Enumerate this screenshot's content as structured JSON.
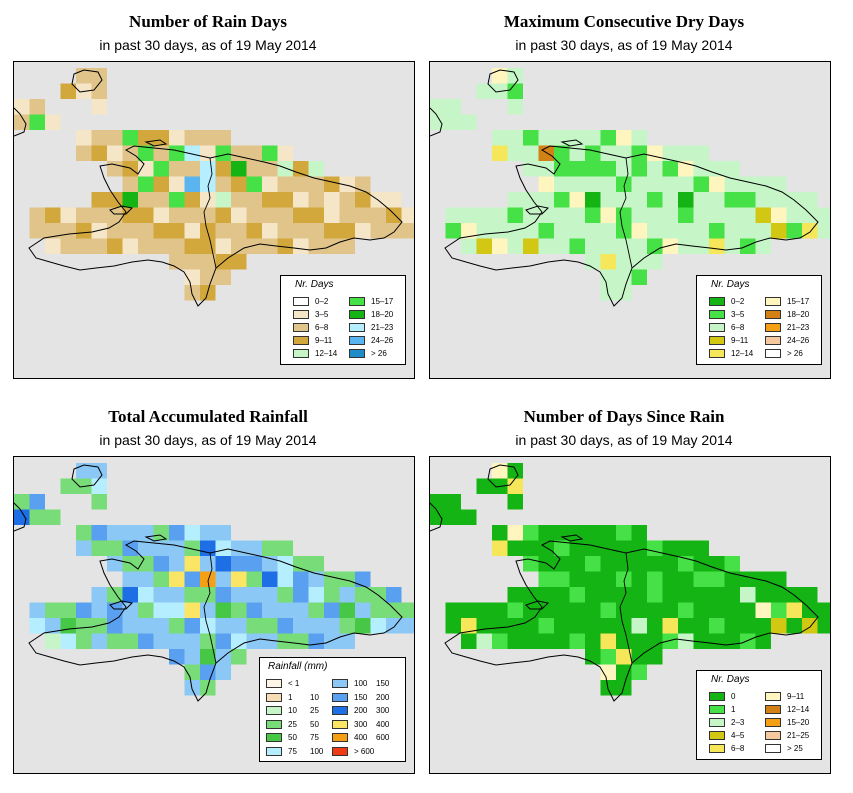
{
  "colors": {
    "background": "#e4e4e4",
    "border": "#000000"
  },
  "panels": [
    {
      "id": "rain-days",
      "title": "Number of Rain Days",
      "subtitle": "in past 30 days, as of  19 May 2014",
      "legend": {
        "title": "Nr. Days",
        "items": [
          {
            "label": "0–2",
            "color": "#ffffff"
          },
          {
            "label": "3–5",
            "color": "#f5e6c8"
          },
          {
            "label": "6–8",
            "color": "#e1c48a"
          },
          {
            "label": "9–11",
            "color": "#d2a73c"
          },
          {
            "label": "12–14",
            "color": "#c6f5c8"
          },
          {
            "label": "15–17",
            "color": "#46e146"
          },
          {
            "label": "18–20",
            "color": "#14b414"
          },
          {
            "label": "21–23",
            "color": "#b4eeff"
          },
          {
            "label": "24–26",
            "color": "#5ab4f0"
          },
          {
            "label": "> 26",
            "color": "#1e8cc8"
          }
        ]
      },
      "map": {
        "base_color": "#e1c48a",
        "cells": [
          {
            "col": 7,
            "row": 4,
            "color": "#46e146"
          },
          {
            "col": 8,
            "row": 5,
            "color": "#46e146"
          },
          {
            "col": 10,
            "row": 5,
            "color": "#46e146"
          },
          {
            "col": 9,
            "row": 6,
            "color": "#46e146"
          },
          {
            "col": 11,
            "row": 5,
            "color": "#b4eeff"
          },
          {
            "col": 12,
            "row": 6,
            "color": "#b4eeff"
          },
          {
            "col": 11,
            "row": 7,
            "color": "#5ab4f0"
          },
          {
            "col": 12,
            "row": 7,
            "color": "#b4eeff"
          },
          {
            "col": 13,
            "row": 5,
            "color": "#46e146"
          },
          {
            "col": 14,
            "row": 6,
            "color": "#14b414"
          },
          {
            "col": 16,
            "row": 5,
            "color": "#46e146"
          },
          {
            "col": 17,
            "row": 6,
            "color": "#c6f5c8"
          },
          {
            "col": 13,
            "row": 8,
            "color": "#c6f5c8"
          },
          {
            "col": 15,
            "row": 7,
            "color": "#46e146"
          },
          {
            "col": 19,
            "row": 6,
            "color": "#c6f5c8"
          },
          {
            "col": 8,
            "row": 7,
            "color": "#46e146"
          },
          {
            "col": 7,
            "row": 8,
            "color": "#14b414"
          },
          {
            "col": 10,
            "row": 8,
            "color": "#46e146"
          },
          {
            "col": 5,
            "row": 2,
            "color": "#f5e6c8"
          },
          {
            "col": 4,
            "row": 1,
            "color": "#f5e6c8"
          },
          {
            "col": 1,
            "row": 3,
            "color": "#46e146"
          },
          {
            "col": 20,
            "row": 8,
            "color": "#f5e6c8"
          },
          {
            "col": 24,
            "row": 8,
            "color": "#f5e6c8"
          },
          {
            "col": 12,
            "row": 10,
            "color": "#d2a73c"
          }
        ]
      }
    },
    {
      "id": "dry-days",
      "title": "Maximum Consecutive Dry Days",
      "subtitle": "in past 30 days, as of  19 May 2014",
      "legend": {
        "title": "Nr. Days",
        "items": [
          {
            "label": "0–2",
            "color": "#14b414"
          },
          {
            "label": "3–5",
            "color": "#46e146"
          },
          {
            "label": "6–8",
            "color": "#c6f5c8"
          },
          {
            "label": "9–11",
            "color": "#d2c814"
          },
          {
            "label": "12–14",
            "color": "#f5e65a"
          },
          {
            "label": "15–17",
            "color": "#fff5be"
          },
          {
            "label": "18–20",
            "color": "#d28214"
          },
          {
            "label": "21–23",
            "color": "#f5a014"
          },
          {
            "label": "24–26",
            "color": "#f5c8a0"
          },
          {
            "label": "> 26",
            "color": "#ffffff"
          }
        ]
      },
      "map": {
        "base_color": "#c6f5c8",
        "cells": [
          {
            "col": 7,
            "row": 5,
            "color": "#d28214"
          },
          {
            "col": 8,
            "row": 6,
            "color": "#46e146"
          },
          {
            "col": 9,
            "row": 6,
            "color": "#46e146"
          },
          {
            "col": 10,
            "row": 5,
            "color": "#46e146"
          },
          {
            "col": 11,
            "row": 6,
            "color": "#46e146"
          },
          {
            "col": 12,
            "row": 7,
            "color": "#46e146"
          },
          {
            "col": 13,
            "row": 6,
            "color": "#46e146"
          },
          {
            "col": 8,
            "row": 8,
            "color": "#46e146"
          },
          {
            "col": 10,
            "row": 8,
            "color": "#14b414"
          },
          {
            "col": 12,
            "row": 9,
            "color": "#46e146"
          },
          {
            "col": 16,
            "row": 8,
            "color": "#14b414"
          },
          {
            "col": 17,
            "row": 7,
            "color": "#46e146"
          },
          {
            "col": 20,
            "row": 8,
            "color": "#46e146"
          },
          {
            "col": 21,
            "row": 9,
            "color": "#d2c814"
          },
          {
            "col": 22,
            "row": 10,
            "color": "#d2c814"
          },
          {
            "col": 24,
            "row": 10,
            "color": "#f5e65a"
          },
          {
            "col": 2,
            "row": 10,
            "color": "#fff5be"
          },
          {
            "col": 3,
            "row": 11,
            "color": "#d2c814"
          },
          {
            "col": 11,
            "row": 12,
            "color": "#f5e65a"
          },
          {
            "col": 6,
            "row": 11,
            "color": "#d2c814"
          },
          {
            "col": 15,
            "row": 12,
            "color": "#d2c814"
          },
          {
            "col": 18,
            "row": 11,
            "color": "#f5e65a"
          },
          {
            "col": 4,
            "row": 5,
            "color": "#f5e65a"
          },
          {
            "col": 5,
            "row": 1,
            "color": "#46e146"
          }
        ]
      }
    },
    {
      "id": "rainfall",
      "title": "Total Accumulated Rainfall",
      "subtitle": "in past 30 days, as of  19 May 2014",
      "legend": {
        "title": "Rainfall (mm)",
        "items": [
          {
            "lo": "< 1",
            "hi": "",
            "color": "#fff5e6"
          },
          {
            "lo": "1",
            "hi": "10",
            "color": "#f5dcb4"
          },
          {
            "lo": "10",
            "hi": "25",
            "color": "#c6f5c8"
          },
          {
            "lo": "25",
            "hi": "50",
            "color": "#78dc78"
          },
          {
            "lo": "50",
            "hi": "75",
            "color": "#46c846"
          },
          {
            "lo": "75",
            "hi": "100",
            "color": "#b4eeff"
          },
          {
            "lo": "100",
            "hi": "150",
            "color": "#8cc8f5"
          },
          {
            "lo": "150",
            "hi": "200",
            "color": "#5aa0f0"
          },
          {
            "lo": "200",
            "hi": "300",
            "color": "#1e6ee6"
          },
          {
            "lo": "300",
            "hi": "400",
            "color": "#fae664"
          },
          {
            "lo": "400",
            "hi": "600",
            "color": "#f5a014"
          },
          {
            "lo": "> 600",
            "hi": "",
            "color": "#f03c14"
          }
        ]
      },
      "map": {
        "base_color": "#8cc8f5",
        "cells": [
          {
            "col": 11,
            "row": 6,
            "color": "#fae664"
          },
          {
            "col": 12,
            "row": 7,
            "color": "#f5a014"
          },
          {
            "col": 13,
            "row": 6,
            "color": "#1e6ee6"
          },
          {
            "col": 14,
            "row": 7,
            "color": "#fae664"
          },
          {
            "col": 10,
            "row": 7,
            "color": "#fae664"
          },
          {
            "col": 12,
            "row": 5,
            "color": "#1e6ee6"
          },
          {
            "col": 15,
            "row": 6,
            "color": "#5aa0f0"
          },
          {
            "col": 16,
            "row": 7,
            "color": "#1e6ee6"
          },
          {
            "col": 17,
            "row": 6,
            "color": "#b4eeff"
          },
          {
            "col": 18,
            "row": 7,
            "color": "#5aa0f0"
          },
          {
            "col": 19,
            "row": 6,
            "color": "#78dc78"
          },
          {
            "col": 20,
            "row": 8,
            "color": "#78dc78"
          },
          {
            "col": 21,
            "row": 9,
            "color": "#46c846"
          },
          {
            "col": 22,
            "row": 10,
            "color": "#46c846"
          },
          {
            "col": 23,
            "row": 9,
            "color": "#78dc78"
          },
          {
            "col": 7,
            "row": 8,
            "color": "#1e6ee6"
          },
          {
            "col": 6,
            "row": 9,
            "color": "#5aa0f0"
          },
          {
            "col": 9,
            "row": 9,
            "color": "#b4eeff"
          },
          {
            "col": 11,
            "row": 9,
            "color": "#fae664"
          },
          {
            "col": 13,
            "row": 9,
            "color": "#46c846"
          },
          {
            "col": 3,
            "row": 10,
            "color": "#46c846"
          },
          {
            "col": 4,
            "row": 11,
            "color": "#78dc78"
          },
          {
            "col": 2,
            "row": 11,
            "color": "#c6f5c8"
          },
          {
            "col": 0,
            "row": 3,
            "color": "#1e6ee6"
          },
          {
            "col": 4,
            "row": 1,
            "color": "#78dc78"
          },
          {
            "col": 12,
            "row": 12,
            "color": "#46c846"
          }
        ]
      }
    },
    {
      "id": "since-rain",
      "title": "Number of Days Since Rain",
      "subtitle": "in past 30 days, as of  19 May 2014",
      "legend": {
        "title": "Nr. Days",
        "items": [
          {
            "label": "0",
            "color": "#14b414"
          },
          {
            "label": "1",
            "color": "#46e146"
          },
          {
            "label": "2–3",
            "color": "#c6f5c8"
          },
          {
            "label": "4–5",
            "color": "#d2c814"
          },
          {
            "label": "6–8",
            "color": "#f5e65a"
          },
          {
            "label": "9–11",
            "color": "#fff5be"
          },
          {
            "label": "12–14",
            "color": "#d28214"
          },
          {
            "label": "15–20",
            "color": "#f5a014"
          },
          {
            "label": "21–25",
            "color": "#f5c8a0"
          },
          {
            "label": "> 25",
            "color": "#ffffff"
          }
        ]
      },
      "map": {
        "base_color": "#14b414",
        "cells": [
          {
            "col": 5,
            "row": 4,
            "color": "#fff5be"
          },
          {
            "col": 4,
            "row": 5,
            "color": "#f5e65a"
          },
          {
            "col": 6,
            "row": 6,
            "color": "#46e146"
          },
          {
            "col": 8,
            "row": 7,
            "color": "#46e146"
          },
          {
            "col": 10,
            "row": 6,
            "color": "#46e146"
          },
          {
            "col": 14,
            "row": 7,
            "color": "#46e146"
          },
          {
            "col": 17,
            "row": 7,
            "color": "#46e146"
          },
          {
            "col": 19,
            "row": 6,
            "color": "#46e146"
          },
          {
            "col": 20,
            "row": 8,
            "color": "#c6f5c8"
          },
          {
            "col": 21,
            "row": 9,
            "color": "#fff5be"
          },
          {
            "col": 22,
            "row": 10,
            "color": "#d2c814"
          },
          {
            "col": 23,
            "row": 9,
            "color": "#f5e65a"
          },
          {
            "col": 24,
            "row": 10,
            "color": "#d2c814"
          },
          {
            "col": 2,
            "row": 10,
            "color": "#f5e65a"
          },
          {
            "col": 3,
            "row": 11,
            "color": "#c6f5c8"
          },
          {
            "col": 11,
            "row": 11,
            "color": "#f5e65a"
          },
          {
            "col": 12,
            "row": 12,
            "color": "#f5e65a"
          },
          {
            "col": 11,
            "row": 13,
            "color": "#fff5be"
          },
          {
            "col": 13,
            "row": 10,
            "color": "#c6f5c8"
          },
          {
            "col": 15,
            "row": 10,
            "color": "#f5e65a"
          },
          {
            "col": 16,
            "row": 11,
            "color": "#c6f5c8"
          },
          {
            "col": 5,
            "row": 1,
            "color": "#f5e65a"
          },
          {
            "col": 4,
            "row": 0,
            "color": "#fff5be"
          }
        ]
      }
    }
  ]
}
